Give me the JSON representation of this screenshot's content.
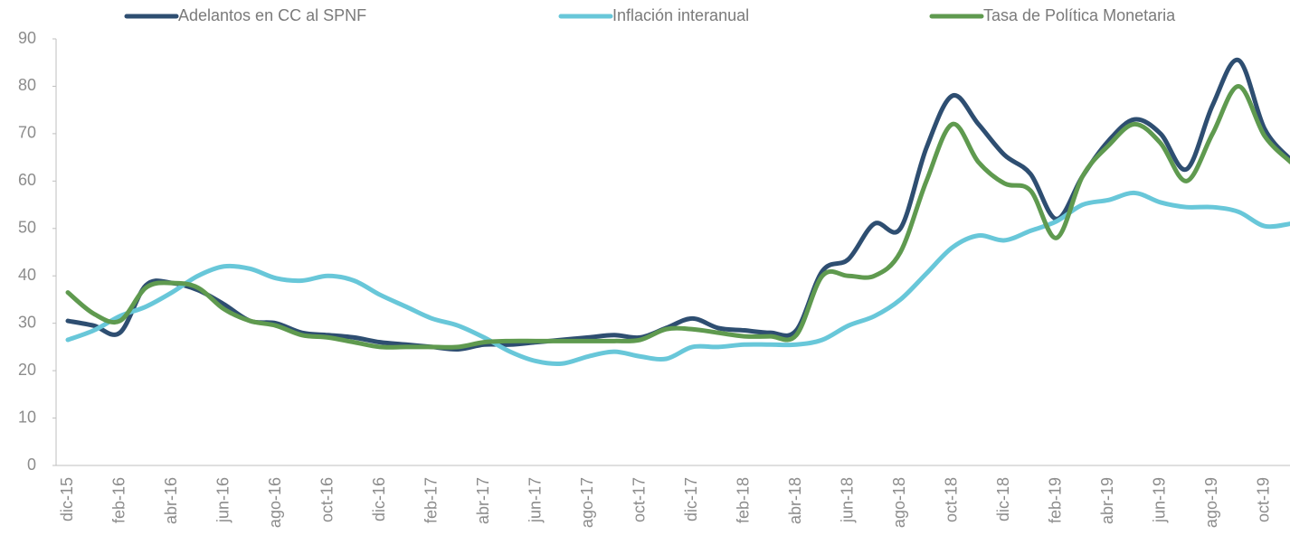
{
  "chart_data": {
    "type": "line",
    "categories": [
      "dic-15",
      null,
      "feb-16",
      null,
      "abr-16",
      null,
      "jun-16",
      null,
      "ago-16",
      null,
      "oct-16",
      null,
      "dic-16",
      null,
      "feb-17",
      null,
      "abr-17",
      null,
      "jun-17",
      null,
      "ago-17",
      null,
      "oct-17",
      null,
      "dic-17",
      null,
      "feb-18",
      null,
      "abr-18",
      null,
      "jun-18",
      null,
      "ago-18",
      null,
      "oct-18",
      null,
      "dic-18",
      null,
      "feb-19",
      null,
      "abr-19",
      null,
      "jun-19",
      null,
      "ago-19",
      null,
      "oct-19",
      null
    ],
    "series": [
      {
        "name": "Adelantos en CC al SPNF",
        "color": "#2e4e71",
        "values": [
          30.5,
          29.5,
          28,
          38,
          38.5,
          37,
          34,
          30.5,
          30,
          28,
          27.5,
          27,
          26,
          25.5,
          25,
          24.5,
          25.5,
          25.5,
          26,
          26.5,
          27,
          27.5,
          27,
          29,
          31,
          29,
          28.5,
          28,
          28.5,
          41,
          43.5,
          51,
          50,
          67,
          78,
          72,
          65.5,
          61.5,
          52,
          61,
          68.5,
          73,
          70,
          62.5,
          76,
          85.5,
          71,
          64.5
        ]
      },
      {
        "name": "Inflación interanual",
        "color": "#68c7d9",
        "values": [
          26.5,
          28.5,
          31.5,
          33.5,
          36.5,
          40,
          42,
          41.5,
          39.5,
          39,
          40,
          39,
          36,
          33.5,
          31,
          29.5,
          27,
          24,
          22,
          21.5,
          23,
          24,
          23,
          22.5,
          25,
          25,
          25.5,
          25.5,
          25.5,
          26.5,
          29.5,
          31.5,
          35,
          40.5,
          46,
          48.5,
          47.5,
          49.5,
          51.5,
          55,
          56,
          57.5,
          55.5,
          54.5,
          54.5,
          53.5,
          50.5,
          51
        ]
      },
      {
        "name": "Tasa de Política Monetaria",
        "color": "#5f9a4f",
        "values": [
          36.5,
          32,
          30.5,
          37.5,
          38.5,
          37.5,
          33,
          30.5,
          29.5,
          27.5,
          27,
          26,
          25,
          25,
          25,
          25,
          26,
          26.25,
          26.25,
          26.25,
          26.25,
          26.25,
          26.5,
          28.75,
          28.75,
          28,
          27.25,
          27.25,
          27.5,
          40,
          40,
          40,
          45,
          60,
          72,
          64,
          59.5,
          58,
          48,
          61,
          67.5,
          72,
          68,
          60,
          70,
          80,
          69.5,
          64
        ]
      }
    ],
    "ylim": [
      0,
      90
    ],
    "yticks": [
      0,
      10,
      20,
      30,
      40,
      50,
      60,
      70,
      80,
      90
    ],
    "grid": false,
    "legend": "top"
  }
}
